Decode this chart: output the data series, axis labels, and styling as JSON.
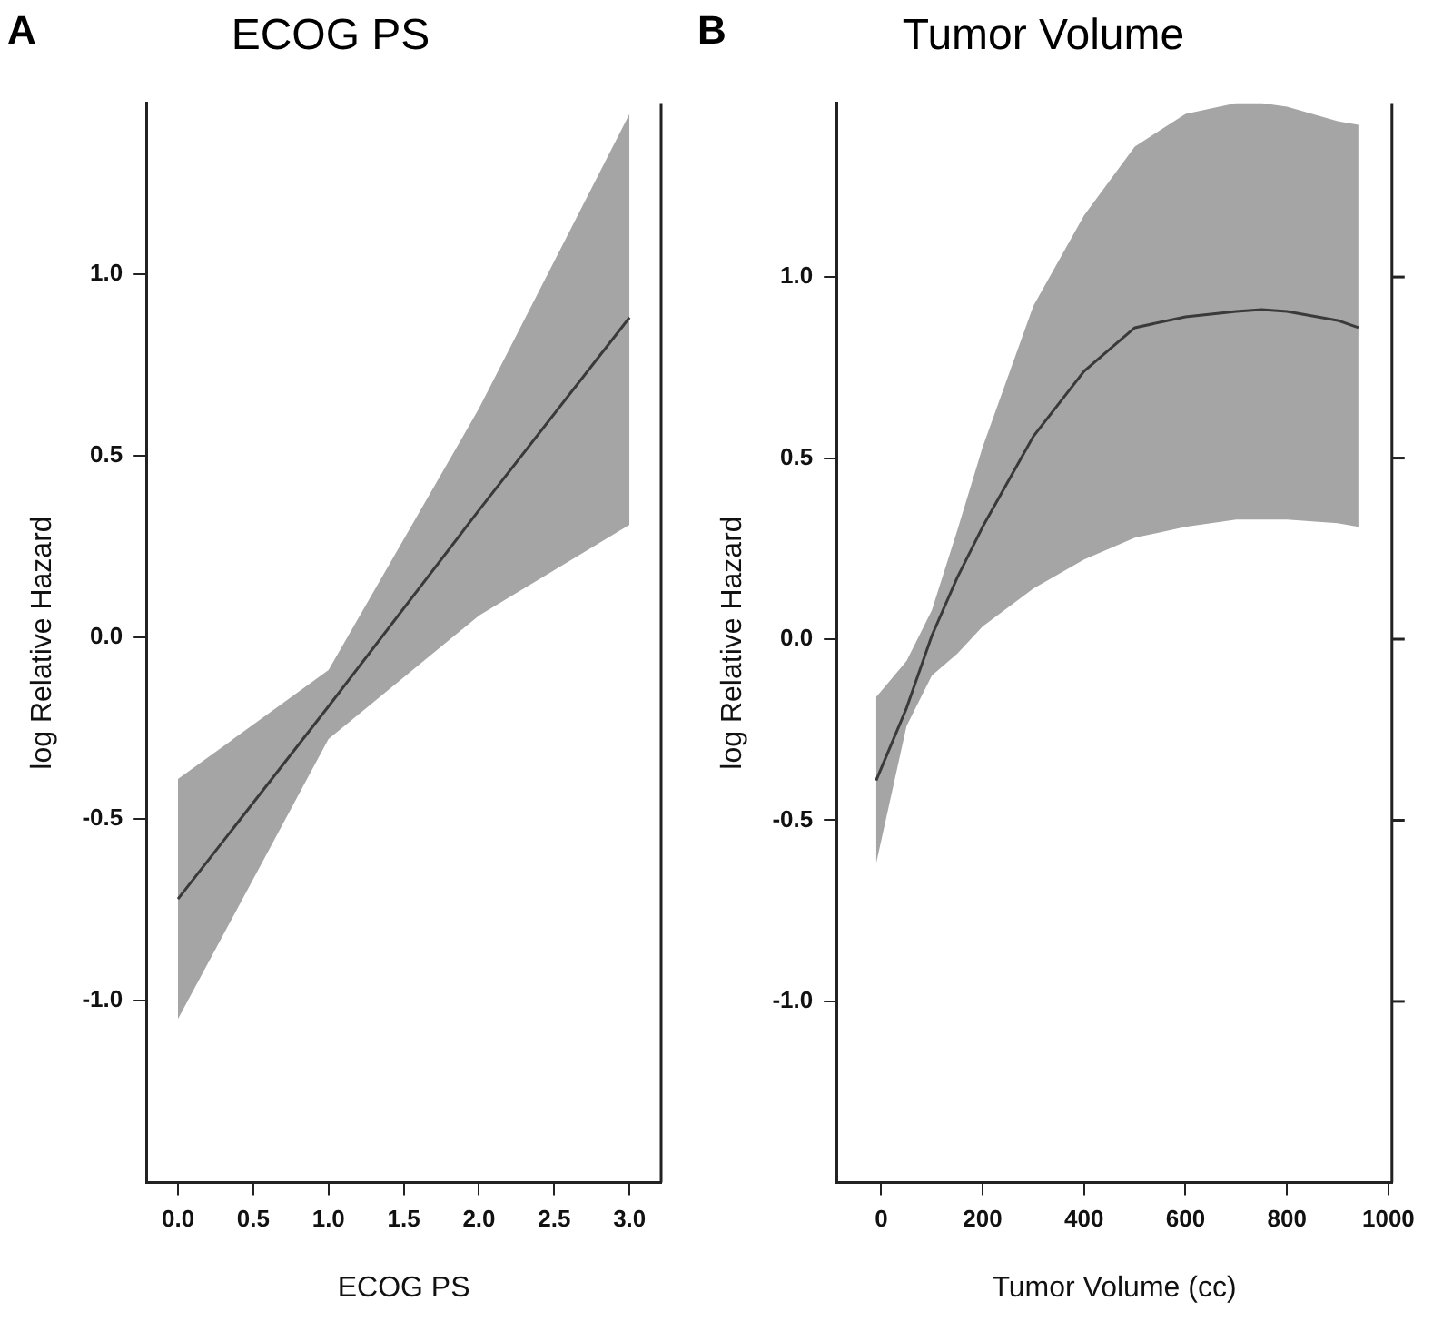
{
  "chart_data": [
    {
      "type": "line",
      "title": "ECOG PS",
      "xlabel": "ECOG PS",
      "ylabel": "log Relative Hazard",
      "annotations": [
        "A"
      ],
      "x": [
        0,
        1,
        2,
        3
      ],
      "series": [
        {
          "color": "#3a3a3a",
          "values": [
            -0.72,
            -0.19,
            0.35,
            0.88
          ],
          "lower": [
            -1.05,
            -0.28,
            0.06,
            0.31
          ],
          "upper": [
            -0.39,
            -0.09,
            0.63,
            1.44
          ]
        }
      ],
      "xlim": [
        -0.21,
        3.21
      ],
      "xticks": [
        {
          "value": 0,
          "label": "0.0"
        },
        {
          "value": 0.5,
          "label": "0.5"
        },
        {
          "value": 1,
          "label": "1.0"
        },
        {
          "value": 1.5,
          "label": "1.5"
        },
        {
          "value": 2,
          "label": "2.0"
        },
        {
          "value": 2.5,
          "label": "2.5"
        },
        {
          "value": 3,
          "label": "3.0"
        }
      ],
      "ylim": [
        -1.5,
        1.47
      ],
      "yticks": [
        {
          "value": -1,
          "label": "-1.0"
        },
        {
          "value": -0.5,
          "label": "-0.5"
        },
        {
          "value": 0,
          "label": "0.0"
        },
        {
          "value": 0.5,
          "label": "0.5"
        },
        {
          "value": 1,
          "label": "1.0"
        }
      ],
      "grid": false,
      "legend": false
    },
    {
      "type": "line",
      "title": "Tumor Volume",
      "xlabel": "Tumor Volume (cc)",
      "ylabel": "log Relative Hazard",
      "annotations": [
        "B"
      ],
      "x": [
        -10,
        50,
        100,
        150,
        200,
        300,
        400,
        500,
        600,
        700,
        750,
        800,
        900,
        941
      ],
      "series": [
        {
          "color": "#3a3a3a",
          "values": [
            -0.39,
            -0.19,
            0.01,
            0.17,
            0.31,
            0.56,
            0.74,
            0.86,
            0.89,
            0.905,
            0.91,
            0.905,
            0.88,
            0.86
          ],
          "lower": [
            -0.62,
            -0.24,
            -0.1,
            -0.04,
            0.035,
            0.14,
            0.22,
            0.28,
            0.31,
            0.33,
            0.33,
            0.33,
            0.32,
            0.31
          ],
          "upper": [
            -0.16,
            -0.06,
            0.08,
            0.3,
            0.53,
            0.92,
            1.17,
            1.36,
            1.45,
            1.48,
            1.48,
            1.47,
            1.43,
            1.42
          ]
        }
      ],
      "xlim": [
        -88,
        1007
      ],
      "xticks": [
        0,
        200,
        400,
        600,
        800,
        1000
      ],
      "ylim": [
        -1.5,
        1.48
      ],
      "yticks": [
        {
          "value": -1,
          "label": "-1.0"
        },
        {
          "value": -0.5,
          "label": "-0.5"
        },
        {
          "value": 0,
          "label": "0.0"
        },
        {
          "value": 0.5,
          "label": "0.5"
        },
        {
          "value": 1,
          "label": "1.0"
        }
      ],
      "grid": false,
      "legend": false
    }
  ]
}
